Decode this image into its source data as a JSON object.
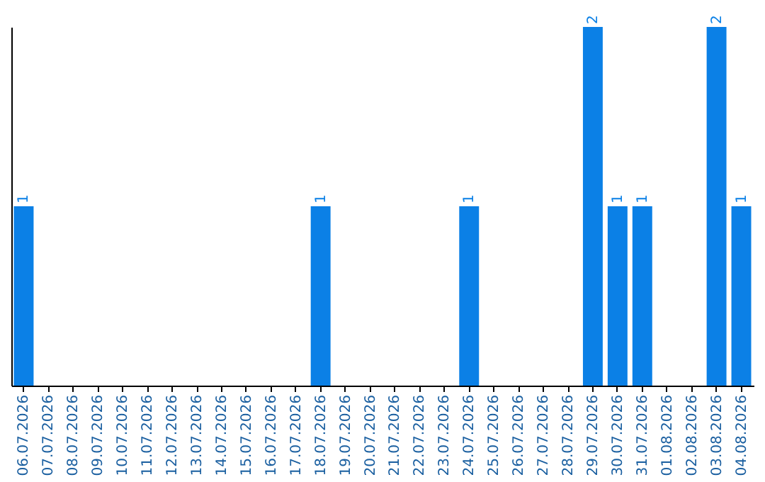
{
  "chart_data": {
    "type": "bar",
    "categories": [
      "06.07.2026",
      "07.07.2026",
      "08.07.2026",
      "09.07.2026",
      "10.07.2026",
      "11.07.2026",
      "12.07.2026",
      "13.07.2026",
      "14.07.2026",
      "15.07.2026",
      "16.07.2026",
      "17.07.2026",
      "18.07.2026",
      "19.07.2026",
      "20.07.2026",
      "21.07.2026",
      "22.07.2026",
      "23.07.2026",
      "24.07.2026",
      "25.07.2026",
      "26.07.2026",
      "27.07.2026",
      "28.07.2026",
      "29.07.2026",
      "30.07.2026",
      "31.07.2026",
      "01.08.2026",
      "02.08.2026",
      "03.08.2026",
      "04.08.2026"
    ],
    "values": [
      1,
      0,
      0,
      0,
      0,
      0,
      0,
      0,
      0,
      0,
      0,
      0,
      1,
      0,
      0,
      0,
      0,
      0,
      1,
      0,
      0,
      0,
      0,
      2,
      1,
      1,
      0,
      0,
      2,
      1
    ],
    "value_labels": [
      "1",
      null,
      null,
      null,
      null,
      null,
      null,
      null,
      null,
      null,
      null,
      null,
      "1",
      null,
      null,
      null,
      null,
      null,
      "1",
      null,
      null,
      null,
      null,
      "2",
      "1",
      "1",
      null,
      null,
      "2",
      "1"
    ],
    "color": "#0b80e6"
  }
}
